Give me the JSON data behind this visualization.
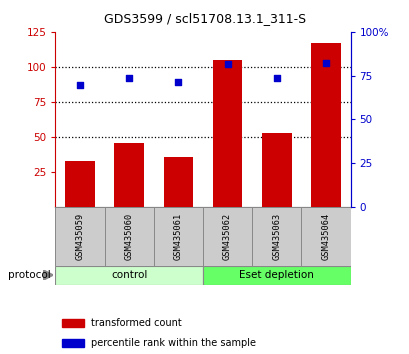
{
  "title": "GDS3599 / scl51708.13.1_311-S",
  "categories": [
    "GSM435059",
    "GSM435060",
    "GSM435061",
    "GSM435062",
    "GSM435063",
    "GSM435064"
  ],
  "bar_values": [
    33,
    46,
    36,
    105,
    53,
    117
  ],
  "percentile_values": [
    87,
    92,
    89,
    102,
    92,
    103
  ],
  "bar_color": "#cc0000",
  "scatter_color": "#0000cc",
  "ylim_left": [
    0,
    125
  ],
  "ylim_right": [
    0,
    100
  ],
  "yticks_left": [
    25,
    50,
    75,
    100,
    125
  ],
  "yticks_right": [
    0,
    25,
    50,
    75,
    100
  ],
  "ytick_labels_right": [
    "0",
    "25",
    "50",
    "75",
    "100%"
  ],
  "groups": [
    {
      "label": "control",
      "indices": [
        0,
        1,
        2
      ],
      "color": "#ccffcc"
    },
    {
      "label": "Eset depletion",
      "indices": [
        3,
        4,
        5
      ],
      "color": "#66ff66"
    }
  ],
  "protocol_label": "protocol",
  "legend_bar_label": "transformed count",
  "legend_scatter_label": "percentile rank within the sample",
  "bar_width": 0.6,
  "background_color": "#ffffff",
  "bar_color_left": "#cc0000",
  "ylabel_right_color": "#0000cc",
  "xtick_bg": "#cccccc",
  "dotted_lines": [
    50,
    75,
    100
  ]
}
